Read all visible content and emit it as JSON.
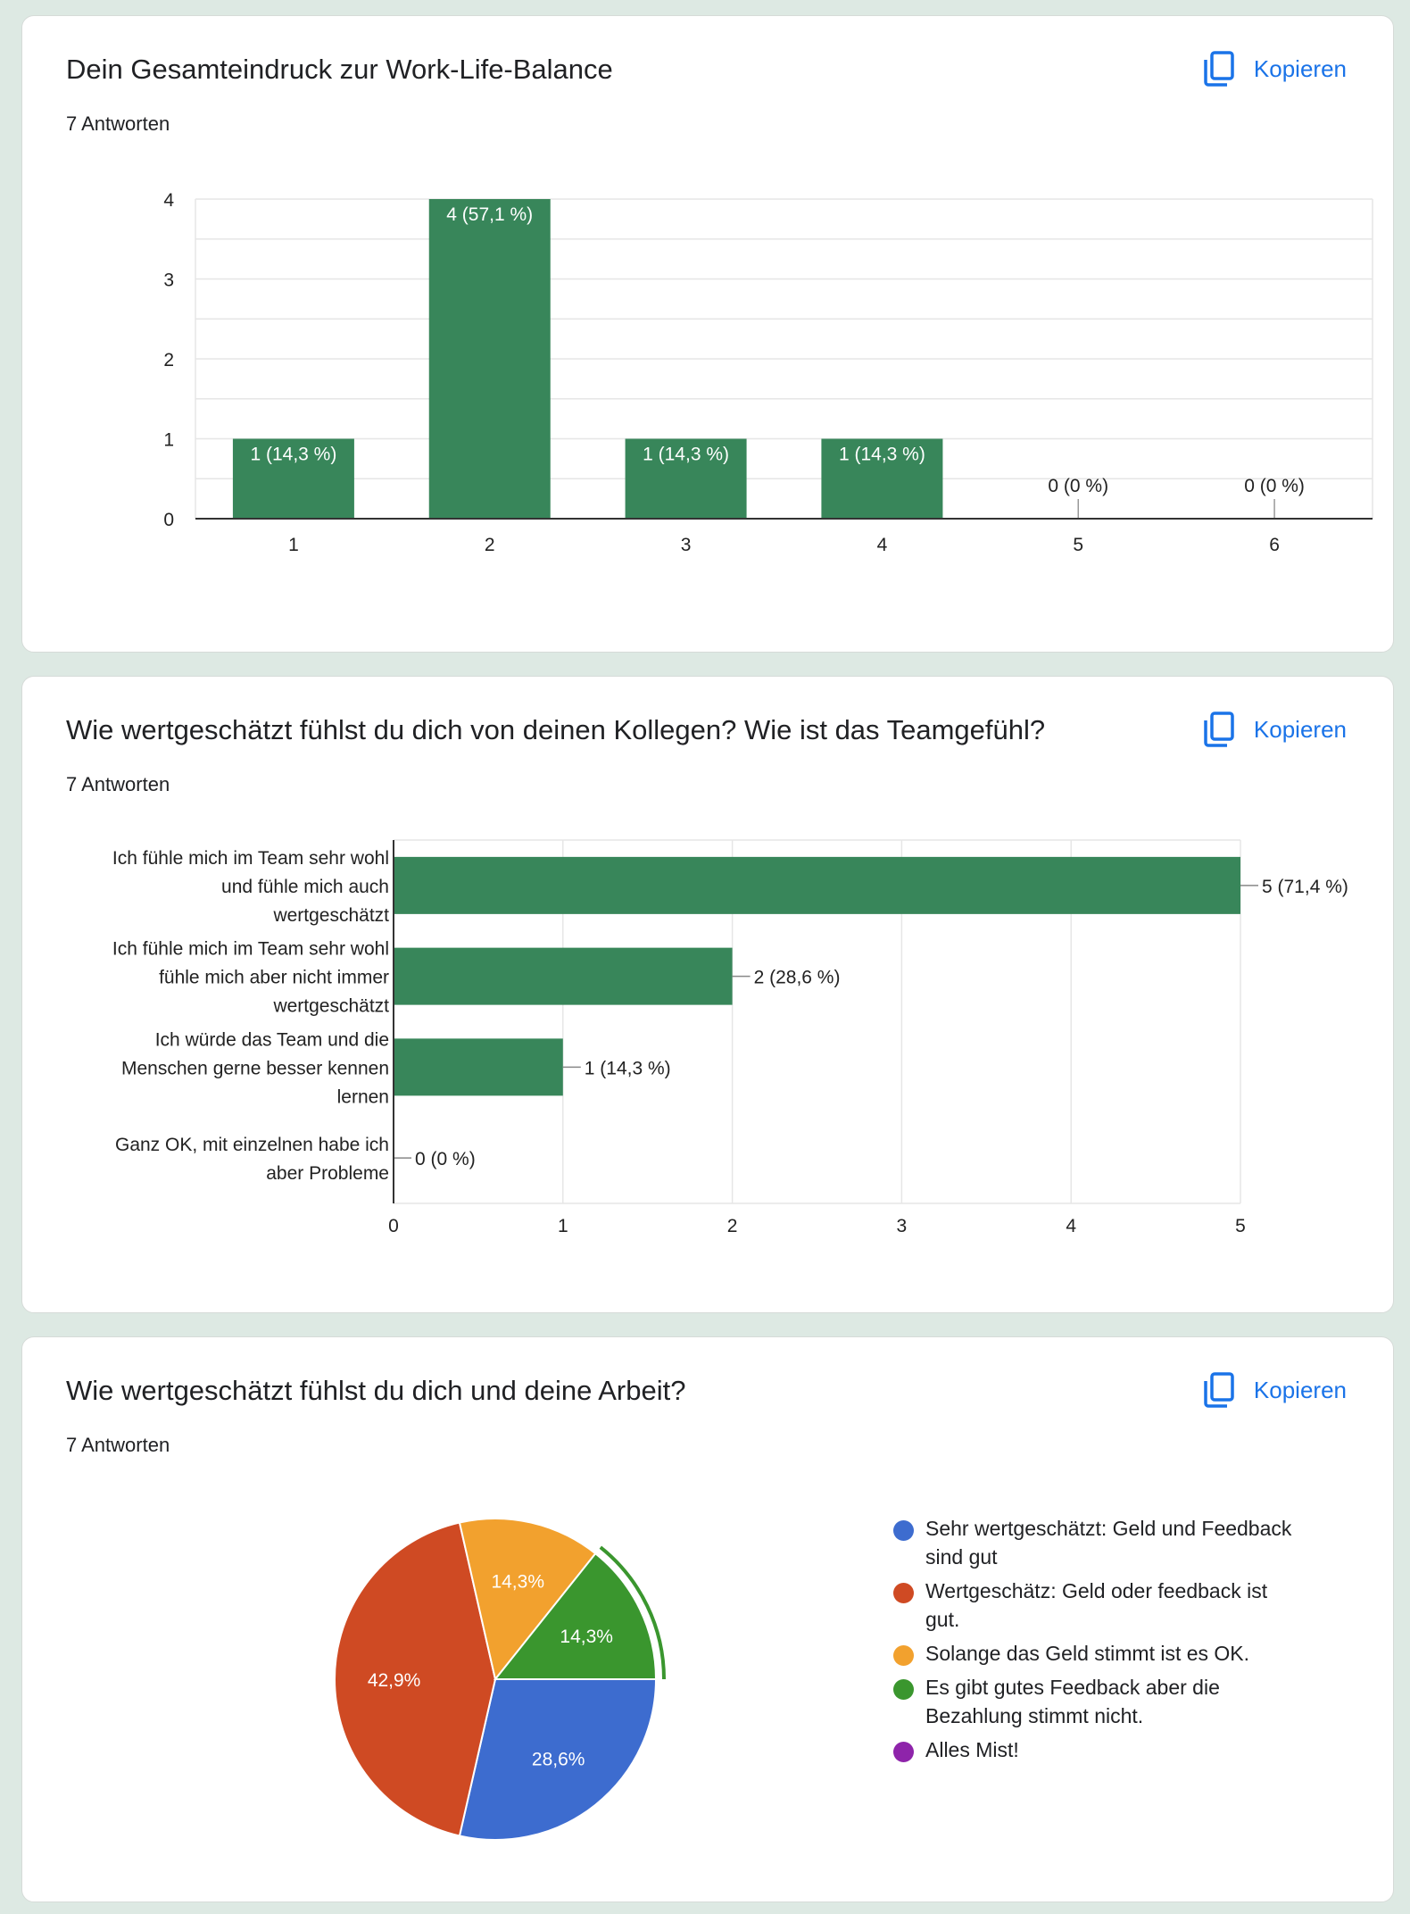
{
  "copy_label": "Kopieren",
  "accent": "#1a73e8",
  "bar_color": "#38865a",
  "card1": {
    "title": "Dein Gesamteindruck zur Work-Life-Balance",
    "responses": "7 Antworten"
  },
  "card2": {
    "title": "Wie wertgeschätzt fühlst du dich von deinen Kollegen? Wie ist das Teamgefühl?",
    "responses": "7 Antworten"
  },
  "card3": {
    "title": "Wie wertgeschätzt fühlst du dich und deine Arbeit?",
    "responses": "7 Antworten"
  },
  "chart_data": [
    {
      "type": "bar",
      "orientation": "vertical",
      "categories": [
        "1",
        "2",
        "3",
        "4",
        "5",
        "6"
      ],
      "values": [
        1,
        4,
        1,
        1,
        0,
        0
      ],
      "data_labels": [
        "1 (14,3 %)",
        "4 (57,1 %)",
        "1 (14,3 %)",
        "1 (14,3 %)",
        "0 (0 %)",
        "0 (0 %)"
      ],
      "yticks": [
        "0",
        "1",
        "2",
        "3",
        "4"
      ],
      "ylim": [
        0,
        4
      ],
      "grid": true
    },
    {
      "type": "bar",
      "orientation": "horizontal",
      "categories": [
        [
          "Ich fühle mich im Team sehr wohl",
          "und fühle mich auch",
          "wertgeschätzt"
        ],
        [
          "Ich fühle mich im Team sehr wohl",
          "fühle mich aber nicht immer",
          "wertgeschätzt"
        ],
        [
          "Ich würde das Team und die",
          "Menschen gerne besser kennen",
          "lernen"
        ],
        [
          "Ganz OK, mit einzelnen habe ich",
          "aber Probleme"
        ]
      ],
      "values": [
        5,
        2,
        1,
        0
      ],
      "data_labels": [
        "5 (71,4 %)",
        "2 (28,6 %)",
        "1 (14,3 %)",
        "0 (0 %)"
      ],
      "xticks": [
        "0",
        "1",
        "2",
        "3",
        "4",
        "5"
      ],
      "xlim": [
        0,
        5
      ],
      "grid": true
    },
    {
      "type": "pie",
      "labels": [
        "Sehr wertgeschätzt: Geld und Feedback sind gut",
        "Wertgeschätz: Geld oder feedback ist gut.",
        "Solange das Geld stimmt ist es OK.",
        "Es gibt gutes Feedback aber die Bezahlung stimmt nicht.",
        "Alles Mist!"
      ],
      "legend_lines": [
        [
          "Sehr wertgeschätzt: Geld und Feedback",
          "sind gut"
        ],
        [
          "Wertgeschätz: Geld oder feedback ist",
          "gut."
        ],
        [
          "Solange das Geld stimmt ist es OK."
        ],
        [
          "Es gibt gutes Feedback aber die",
          "Bezahlung stimmt nicht."
        ],
        [
          "Alles Mist!"
        ]
      ],
      "values": [
        2,
        3,
        1,
        1,
        0
      ],
      "percent_labels": [
        "28,6%",
        "42,9%",
        "14,3%",
        "14,3%",
        ""
      ],
      "colors": [
        "#3d6ccf",
        "#cf4a23",
        "#f2a12e",
        "#3a962e",
        "#8e24aa"
      ],
      "highlighted_slice": 3,
      "legend_position": "right"
    }
  ]
}
